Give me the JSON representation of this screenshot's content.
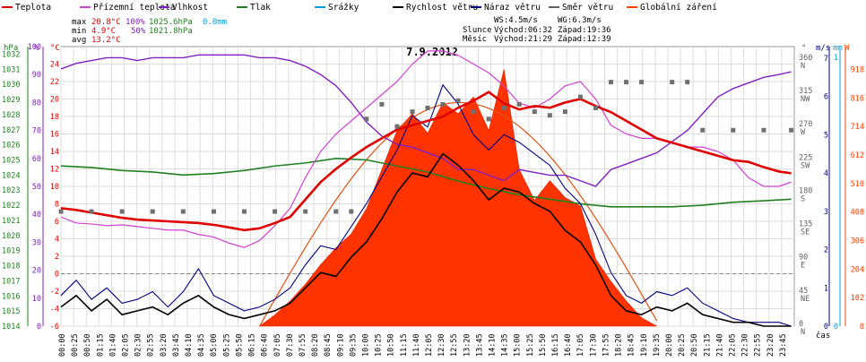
{
  "chart_data": {
    "type": "line",
    "title": "7.9.2012",
    "legend": [
      {
        "label": "Teplota",
        "color": "#e00000"
      },
      {
        "label": "Přízemní teplota",
        "color": "#d040d0"
      },
      {
        "label": "Vlhkost",
        "color": "#8020c0"
      },
      {
        "label": "Tlak",
        "color": "#208020"
      },
      {
        "label": "Srážky",
        "color": "#00a0e0"
      },
      {
        "label": "Rychlost větru",
        "color": "#000000"
      },
      {
        "label": "Náraz větru",
        "color": "#000080"
      },
      {
        "label": "Směr větru",
        "color": "#606060"
      },
      {
        "label": "Globální záření",
        "color": "#ff4000"
      }
    ],
    "stats": {
      "max_label": "max",
      "max_temp": "20.8°C",
      "max_hum": "100%",
      "max_press": "1025.6hPa",
      "max_rain": "0.0mm",
      "min_label": "min",
      "min_temp": "4.9°C",
      "min_hum": "50%",
      "min_press": "1021.8hPa",
      "avg_label": "avg",
      "avg_temp": "13.2°C"
    },
    "wind_info": {
      "ws": "WS:4.5m/s",
      "wg": "WG:6.3m/s"
    },
    "sun_info": {
      "label": "Slunce",
      "rise": "Východ:06:32",
      "set": "Západ:19:36"
    },
    "moon_info": {
      "label": "Měsíc",
      "rise": "Východ:21:29",
      "set": "Západ:12:39"
    },
    "y_axes": {
      "pressure": {
        "unit": "hPa",
        "ticks": [
          "1032",
          "1031",
          "1030",
          "1029",
          "1028",
          "1027",
          "1026",
          "1025",
          "1024",
          "1023",
          "1022",
          "1021",
          "1020",
          "1019",
          "1018",
          "1017",
          "1016",
          "1015",
          "1014"
        ]
      },
      "humidity": {
        "unit": "%",
        "ticks": [
          "100",
          "90",
          "80",
          "70",
          "60",
          "50",
          "40",
          "30",
          "20",
          "10",
          "0"
        ]
      },
      "temperature": {
        "unit": "°C",
        "ticks": [
          "24",
          "22",
          "20",
          "18",
          "16",
          "14",
          "12",
          "10",
          "8",
          "6",
          "4",
          "2",
          "0",
          "-2",
          "-4",
          "-6"
        ]
      },
      "direction": {
        "unit": "°",
        "ticks": [
          "360 N",
          "315 NW",
          "270 W",
          "225 SW",
          "180 S",
          "135 SE",
          "90 E",
          "45 NE",
          "0 N"
        ]
      },
      "wind": {
        "unit": "m/s",
        "ticks": [
          "7",
          "6",
          "5",
          "4",
          "3",
          "2",
          "1",
          "0"
        ]
      },
      "rain": {
        "unit": "mm",
        "ticks": [
          "1",
          "0"
        ]
      },
      "radiation": {
        "unit": "W",
        "ticks": [
          "918",
          "816",
          "714",
          "612",
          "510",
          "408",
          "306",
          "204",
          "102",
          "0"
        ]
      }
    },
    "xlabel": "čas",
    "x_ticks": [
      "00:00",
      "00:25",
      "00:50",
      "01:15",
      "01:40",
      "02:05",
      "02:30",
      "02:55",
      "03:20",
      "03:45",
      "04:10",
      "04:35",
      "05:00",
      "05:25",
      "05:50",
      "06:15",
      "06:40",
      "07:05",
      "07:30",
      "07:55",
      "08:20",
      "08:45",
      "09:10",
      "09:35",
      "10:00",
      "10:25",
      "10:50",
      "11:15",
      "11:40",
      "12:05",
      "12:30",
      "12:55",
      "13:20",
      "13:45",
      "14:10",
      "14:35",
      "15:00",
      "15:25",
      "15:50",
      "16:15",
      "16:40",
      "17:05",
      "17:30",
      "17:55",
      "18:20",
      "18:45",
      "19:10",
      "19:35",
      "20:00",
      "20:25",
      "20:50",
      "21:15",
      "21:40",
      "22:05",
      "22:30",
      "22:55",
      "23:20",
      "23:45"
    ],
    "grid": true,
    "series": [
      {
        "name": "Teplota",
        "x_hours": [
          0,
          0.5,
          1,
          1.5,
          2,
          2.5,
          3,
          3.5,
          4,
          4.5,
          5,
          5.5,
          6,
          6.5,
          7,
          7.5,
          8,
          8.5,
          9,
          9.5,
          10,
          10.5,
          11,
          11.5,
          12,
          12.5,
          13,
          13.5,
          14,
          14.5,
          15,
          15.5,
          16,
          16.5,
          17,
          17.5,
          18,
          18.5,
          19,
          19.5,
          20,
          20.5,
          21,
          21.5,
          22,
          22.5,
          23,
          23.5,
          23.9
        ],
        "values": [
          7.5,
          7.3,
          7.0,
          6.7,
          6.4,
          6.2,
          6.1,
          6.0,
          5.9,
          5.8,
          5.6,
          5.3,
          5.0,
          5.2,
          5.8,
          6.5,
          8.5,
          10.5,
          12.0,
          13.3,
          14.5,
          15.5,
          16.5,
          17.0,
          17.5,
          18.0,
          19.0,
          19.8,
          20.8,
          19.5,
          18.8,
          19.2,
          19.0,
          19.6,
          20.0,
          19.2,
          18.5,
          17.5,
          16.5,
          15.5,
          15.0,
          14.5,
          14.0,
          13.5,
          13.0,
          12.8,
          12.2,
          11.7,
          11.5
        ]
      },
      {
        "name": "Přízemní teplota",
        "x_hours": [
          0,
          0.5,
          1,
          1.5,
          2,
          2.5,
          3,
          3.5,
          4,
          4.5,
          5,
          5.5,
          6,
          6.5,
          7,
          7.5,
          8,
          8.5,
          9,
          9.5,
          10,
          10.5,
          11,
          11.5,
          12,
          12.5,
          13,
          13.5,
          14,
          14.5,
          15,
          15.5,
          16,
          16.5,
          17,
          17.5,
          18,
          18.5,
          19,
          19.5,
          20,
          20.5,
          21,
          21.5,
          22,
          22.5,
          23,
          23.5,
          23.9
        ],
        "values": [
          6.5,
          5.8,
          5.7,
          5.5,
          5.6,
          5.4,
          5.2,
          5.0,
          5.0,
          4.5,
          4.2,
          3.5,
          3.0,
          3.8,
          5.5,
          7.5,
          11.0,
          14.0,
          16.0,
          17.5,
          19.0,
          20.5,
          22.0,
          24.0,
          25.5,
          25.5,
          25.0,
          24.0,
          23.0,
          21.5,
          19.5,
          19.0,
          20.0,
          21.5,
          22.0,
          20.0,
          17.0,
          16.0,
          15.5,
          15.5,
          15.0,
          14.5,
          14.5,
          14.0,
          13.0,
          11.0,
          10.0,
          10.0,
          10.5
        ]
      },
      {
        "name": "Vlhkost",
        "x_hours": [
          0,
          0.5,
          1,
          1.5,
          2,
          2.5,
          3,
          3.5,
          4,
          4.5,
          5,
          5.5,
          6,
          6.5,
          7,
          7.5,
          8,
          8.5,
          9,
          9.5,
          10,
          10.5,
          11,
          11.5,
          12,
          12.5,
          13,
          13.5,
          14,
          14.5,
          15,
          15.5,
          16,
          16.5,
          17,
          17.5,
          18,
          18.5,
          19,
          19.5,
          20,
          20.5,
          21,
          21.5,
          22,
          22.5,
          23,
          23.5,
          23.9
        ],
        "values": [
          92,
          94,
          95,
          96,
          96,
          95,
          96,
          96,
          96,
          97,
          97,
          97,
          97,
          96,
          96,
          95,
          93,
          90,
          86,
          80,
          73,
          68,
          65,
          64,
          62,
          60,
          56,
          56,
          54,
          52,
          56,
          55,
          54,
          54,
          52,
          50,
          56,
          58,
          60,
          62,
          66,
          70,
          76,
          82,
          85,
          87,
          89,
          90,
          91
        ]
      },
      {
        "name": "Tlak",
        "x_hours": [
          0,
          1,
          2,
          3,
          4,
          5,
          6,
          7,
          8,
          9,
          10,
          11,
          12,
          13,
          14,
          15,
          16,
          17,
          18,
          19,
          20,
          21,
          22,
          23,
          23.9
        ],
        "values": [
          1024.6,
          1024.5,
          1024.3,
          1024.2,
          1024.0,
          1024.1,
          1024.3,
          1024.6,
          1024.8,
          1025.1,
          1025.0,
          1024.6,
          1024.2,
          1023.6,
          1023.1,
          1022.7,
          1022.4,
          1022.1,
          1021.9,
          1021.9,
          1021.9,
          1022.0,
          1022.2,
          1022.3,
          1022.4
        ]
      },
      {
        "name": "Rychlost větru",
        "x_hours": [
          0,
          0.5,
          1,
          1.5,
          2,
          2.5,
          3,
          3.5,
          4,
          4.5,
          5,
          5.5,
          6,
          6.5,
          7,
          7.5,
          8,
          8.5,
          9,
          9.5,
          10,
          10.5,
          11,
          11.5,
          12,
          12.5,
          13,
          13.5,
          14,
          14.5,
          15,
          15.5,
          16,
          16.5,
          17,
          17.5,
          18,
          18.5,
          19,
          19.5,
          20,
          20.5,
          21,
          21.5,
          22,
          22.5,
          23,
          23.5,
          23.9
        ],
        "values": [
          0.5,
          0.8,
          0.4,
          0.7,
          0.3,
          0.4,
          0.5,
          0.3,
          0.6,
          0.8,
          0.5,
          0.3,
          0.2,
          0.3,
          0.4,
          0.6,
          1.0,
          1.4,
          1.3,
          1.8,
          2.2,
          2.8,
          3.5,
          4.0,
          3.9,
          4.5,
          4.2,
          3.8,
          3.3,
          3.6,
          3.5,
          3.2,
          3.0,
          2.5,
          2.2,
          1.6,
          0.8,
          0.4,
          0.3,
          0.5,
          0.4,
          0.6,
          0.3,
          0.2,
          0.1,
          0.1,
          0.0,
          0.0,
          0.0
        ]
      },
      {
        "name": "Náraz větru",
        "x_hours": [
          0,
          0.5,
          1,
          1.5,
          2,
          2.5,
          3,
          3.5,
          4,
          4.5,
          5,
          5.5,
          6,
          6.5,
          7,
          7.5,
          8,
          8.5,
          9,
          9.5,
          10,
          10.5,
          11,
          11.5,
          12,
          12.5,
          13,
          13.5,
          14,
          14.5,
          15,
          15.5,
          16,
          16.5,
          17,
          17.5,
          18,
          18.5,
          19,
          19.5,
          20,
          20.5,
          21,
          21.5,
          22,
          22.5,
          23,
          23.5,
          23.9
        ],
        "values": [
          0.8,
          1.2,
          0.7,
          1.0,
          0.6,
          0.7,
          0.9,
          0.5,
          0.9,
          1.5,
          0.8,
          0.6,
          0.4,
          0.5,
          0.7,
          1.0,
          1.6,
          2.1,
          2.0,
          2.6,
          3.2,
          3.9,
          4.6,
          5.5,
          5.2,
          6.3,
          5.8,
          5.0,
          4.6,
          5.0,
          4.8,
          4.5,
          4.2,
          3.6,
          3.2,
          2.4,
          1.4,
          0.8,
          0.6,
          0.9,
          0.8,
          1.0,
          0.6,
          0.4,
          0.2,
          0.1,
          0.1,
          0.1,
          0.0
        ]
      },
      {
        "name": "Směr větru",
        "x_hours": [
          0,
          1,
          2,
          3,
          4,
          5,
          6,
          7,
          8,
          9,
          9.5,
          10,
          10.5,
          11,
          11.5,
          12,
          12.5,
          13,
          13.5,
          14,
          14.5,
          15,
          15.5,
          16,
          16.5,
          17,
          17.5,
          18,
          18.5,
          19,
          20,
          20.5,
          21,
          22,
          23,
          23.9
        ],
        "values": [
          155,
          155,
          155,
          155,
          155,
          155,
          155,
          155,
          155,
          155,
          155,
          280,
          300,
          270,
          290,
          295,
          300,
          305,
          290,
          280,
          295,
          300,
          290,
          285,
          290,
          310,
          295,
          330,
          330,
          330,
          330,
          330,
          265,
          265,
          265,
          265
        ]
      },
      {
        "name": "Globální záření",
        "x_hours": [
          6.5,
          7,
          7.5,
          8,
          8.5,
          9,
          9.5,
          10,
          10.5,
          11,
          11.5,
          12,
          12.5,
          13,
          13.5,
          14,
          14.5,
          15,
          15.5,
          16,
          16.5,
          17,
          17.5,
          18,
          18.5,
          19,
          19.5
        ],
        "values": [
          0,
          40,
          90,
          150,
          220,
          280,
          330,
          420,
          560,
          700,
          760,
          690,
          800,
          760,
          820,
          700,
          918,
          560,
          450,
          520,
          460,
          430,
          240,
          160,
          90,
          30,
          0
        ]
      }
    ],
    "ylim_temperature": [
      -6,
      26
    ],
    "ylim_humidity": [
      0,
      100
    ],
    "ylim_pressure": [
      1014,
      1032.5
    ],
    "ylim_wind": [
      0,
      7.3
    ],
    "ylim_direction": [
      0,
      378
    ],
    "ylim_radiation": [
      0,
      1000
    ]
  }
}
